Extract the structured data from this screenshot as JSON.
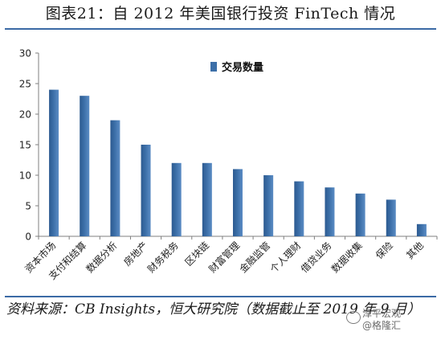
{
  "title": "图表21：自 2012 年美国银行投资 FinTech 情况",
  "source": "资料来源：CB Insights，恒大研究院（数据截止至 2019 年 9 月）",
  "watermark": {
    "line1": "泽平宏观",
    "line2": "@格隆汇"
  },
  "colors": {
    "bar": "#3c6fa8",
    "axis": "#7f7f7f",
    "rule": "#3b6aa5"
  },
  "chart_data": {
    "type": "bar",
    "categories": [
      "资本市场",
      "支付和结算",
      "数据分析",
      "房地产",
      "财务税务",
      "区块链",
      "财富管理",
      "金融监管",
      "个人理财",
      "借贷业务",
      "数据收集",
      "保险",
      "其他"
    ],
    "series": [
      {
        "name": "交易数量",
        "values": [
          24,
          23,
          19,
          15,
          12,
          12,
          11,
          10,
          9,
          8,
          7,
          6,
          2
        ]
      }
    ],
    "y_ticks": [
      "0",
      "5",
      "10",
      "15",
      "20",
      "25",
      "30"
    ],
    "ylim": [
      0,
      30
    ],
    "legend_position": "top-center",
    "grid": false
  }
}
